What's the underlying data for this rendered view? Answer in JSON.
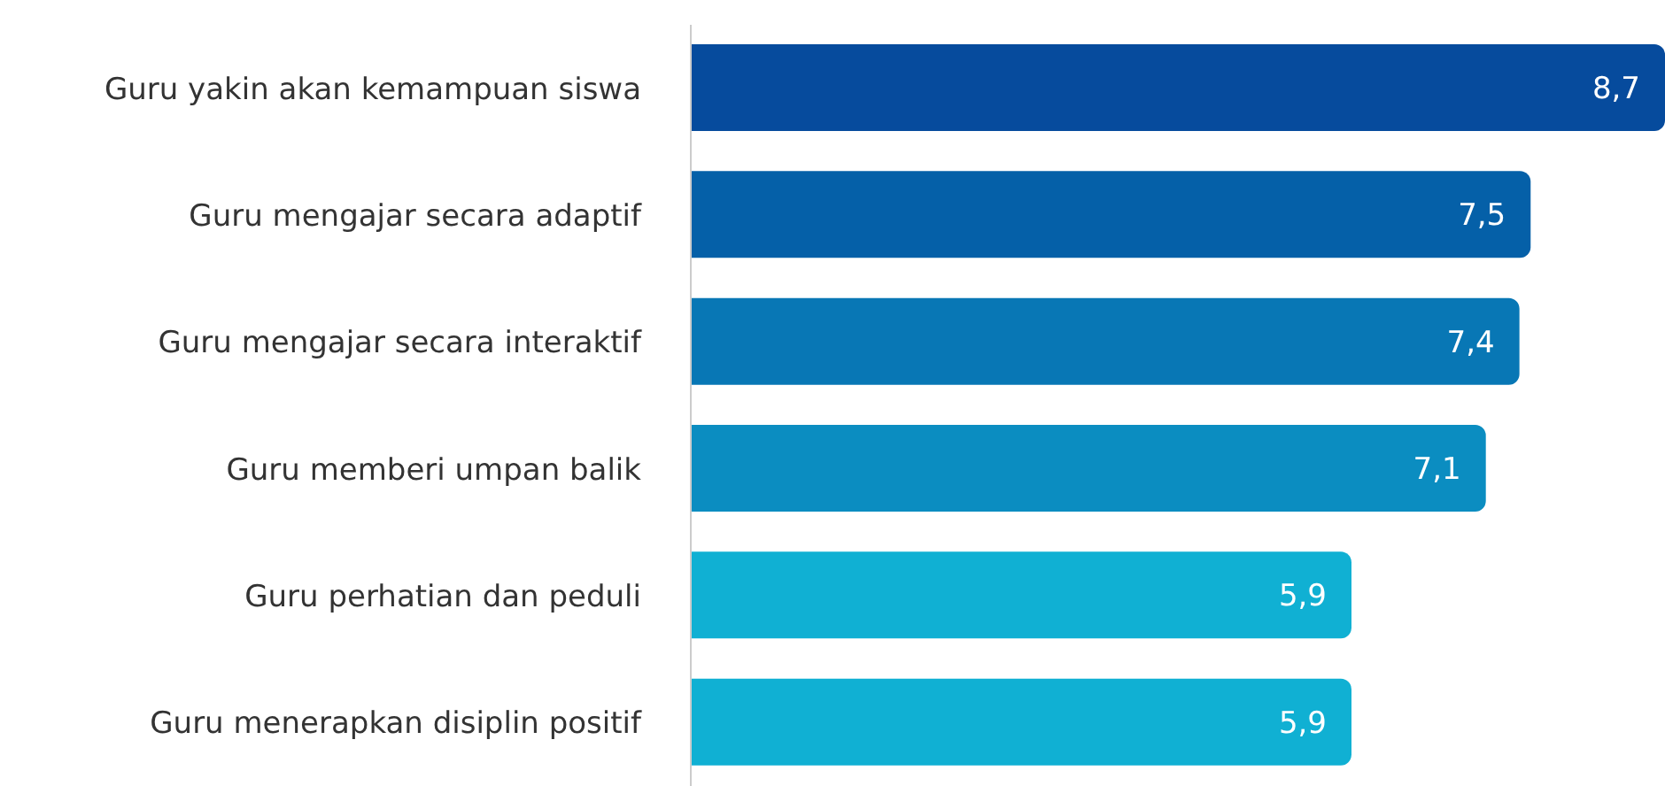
{
  "chart_data": {
    "type": "bar",
    "orientation": "horizontal",
    "categories": [
      "Guru yakin akan kemampuan siswa",
      "Guru mengajar secara adaptif",
      "Guru mengajar secara interaktif",
      "Guru memberi umpan balik",
      "Guru perhatian dan peduli",
      "Guru menerapkan disiplin positif"
    ],
    "values": [
      8.7,
      7.5,
      7.4,
      7.1,
      5.9,
      5.9
    ],
    "value_labels": [
      "8,7",
      "7,5",
      "7,4",
      "7,1",
      "5,9",
      "5,9"
    ],
    "colors": [
      "#064b9d",
      "#0560a8",
      "#0877b5",
      "#0b8dc1",
      "#10b0d3",
      "#10b0d3"
    ]
  }
}
